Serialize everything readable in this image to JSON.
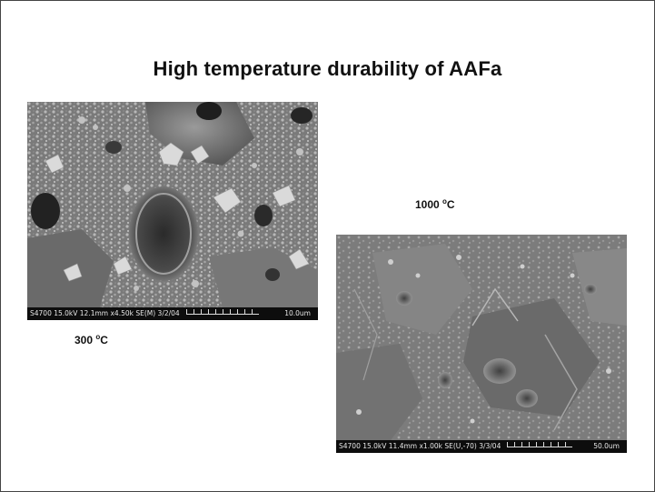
{
  "slide": {
    "title": "High temperature durability of AAFa"
  },
  "images": {
    "sem_300": {
      "info_bar": "S4700 15.0kV 12.1mm x4.50k SE(M) 3/2/04",
      "scale_label": "10.0um"
    },
    "sem_1000": {
      "info_bar": "S4700 15.0kV 11.4mm x1.00k SE(U,-70) 3/3/04",
      "scale_label": "50.0um"
    }
  },
  "captions": {
    "temp_300": {
      "value": "300 ",
      "degree": "o",
      "unit": "C"
    },
    "temp_1000": {
      "value": "1000 ",
      "degree": "o",
      "unit": "C"
    }
  }
}
